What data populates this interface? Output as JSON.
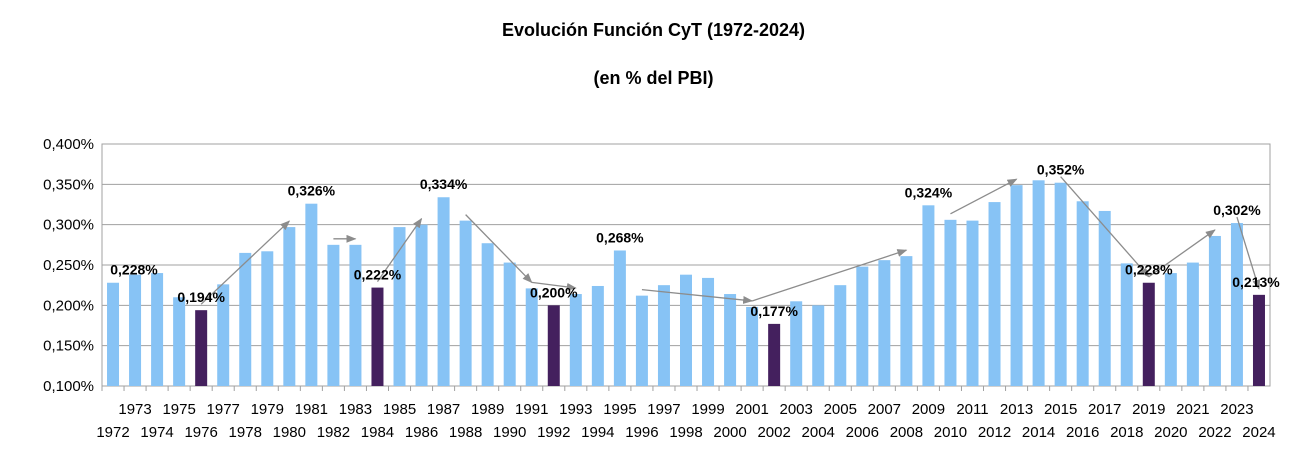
{
  "chart_data": {
    "type": "bar",
    "title": "Evolución Función CyT (1972-2024)",
    "subtitle": "(en % del PBI)",
    "xlabel": "",
    "ylabel": "",
    "ylim": [
      0.1,
      0.4
    ],
    "y_ticks": [
      "0,100%",
      "0,150%",
      "0,200%",
      "0,250%",
      "0,300%",
      "0,350%",
      "0,400%"
    ],
    "y_tick_values": [
      0.1,
      0.15,
      0.2,
      0.25,
      0.3,
      0.35,
      0.4
    ],
    "grid": true,
    "colors": {
      "bar": "#87c3f5",
      "highlight": "#44205e",
      "grid": "#a0a0a0",
      "arrow": "#8c8c8c"
    },
    "categories": [
      "1972",
      "1973",
      "1974",
      "1975",
      "1976",
      "1977",
      "1978",
      "1979",
      "1980",
      "1981",
      "1982",
      "1983",
      "1984",
      "1985",
      "1986",
      "1987",
      "1988",
      "1989",
      "1990",
      "1991",
      "1992",
      "1993",
      "1994",
      "1995",
      "1996",
      "1997",
      "1998",
      "1999",
      "2000",
      "2001",
      "2002",
      "2003",
      "2004",
      "2005",
      "2006",
      "2007",
      "2008",
      "2009",
      "2010",
      "2011",
      "2012",
      "2013",
      "2014",
      "2015",
      "2016",
      "2017",
      "2018",
      "2019",
      "2020",
      "2021",
      "2022",
      "2023",
      "2024"
    ],
    "values": [
      0.228,
      0.238,
      0.24,
      0.21,
      0.194,
      0.226,
      0.265,
      0.267,
      0.297,
      0.326,
      0.275,
      0.275,
      0.222,
      0.297,
      0.3,
      0.334,
      0.305,
      0.277,
      0.253,
      0.221,
      0.2,
      0.214,
      0.224,
      0.268,
      0.212,
      0.225,
      0.238,
      0.234,
      0.214,
      0.198,
      0.177,
      0.205,
      0.2,
      0.225,
      0.248,
      0.256,
      0.261,
      0.324,
      0.306,
      0.305,
      0.328,
      0.349,
      0.355,
      0.352,
      0.329,
      0.317,
      0.252,
      0.228,
      0.24,
      0.253,
      0.286,
      0.302,
      0.213
    ],
    "highlighted": [
      "1976",
      "1984",
      "1992",
      "2002",
      "2019",
      "2024"
    ],
    "annotations": [
      {
        "year": "1972",
        "label": "0,228%"
      },
      {
        "year": "1976",
        "label": "0,194%"
      },
      {
        "year": "1981",
        "label": "0,326%"
      },
      {
        "year": "1984",
        "label": "0,222%"
      },
      {
        "year": "1987",
        "label": "0,334%"
      },
      {
        "year": "1992",
        "label": "0,200%"
      },
      {
        "year": "1995",
        "label": "0,268%"
      },
      {
        "year": "2002",
        "label": "0,177%"
      },
      {
        "year": "2009",
        "label": "0,324%"
      },
      {
        "year": "2015",
        "label": "0,352%"
      },
      {
        "year": "2019",
        "label": "0,228%"
      },
      {
        "year": "2023",
        "label": "0,302%"
      },
      {
        "year": "2024",
        "label": "0,213%"
      }
    ],
    "arrows": [
      {
        "from": "1976",
        "to": "1980"
      },
      {
        "from": "1982",
        "to": "1983"
      },
      {
        "from": "1984",
        "to": "1986"
      },
      {
        "from": "1988",
        "to": "1991"
      },
      {
        "from": "1991",
        "to": "1993"
      },
      {
        "from": "1996",
        "to": "2001"
      },
      {
        "from": "2001",
        "to": "2008"
      },
      {
        "from": "2010",
        "to": "2013"
      },
      {
        "from": "2015",
        "to": "2019"
      },
      {
        "from": "2019",
        "to": "2022"
      },
      {
        "from": "2023",
        "to": "2024"
      }
    ]
  }
}
